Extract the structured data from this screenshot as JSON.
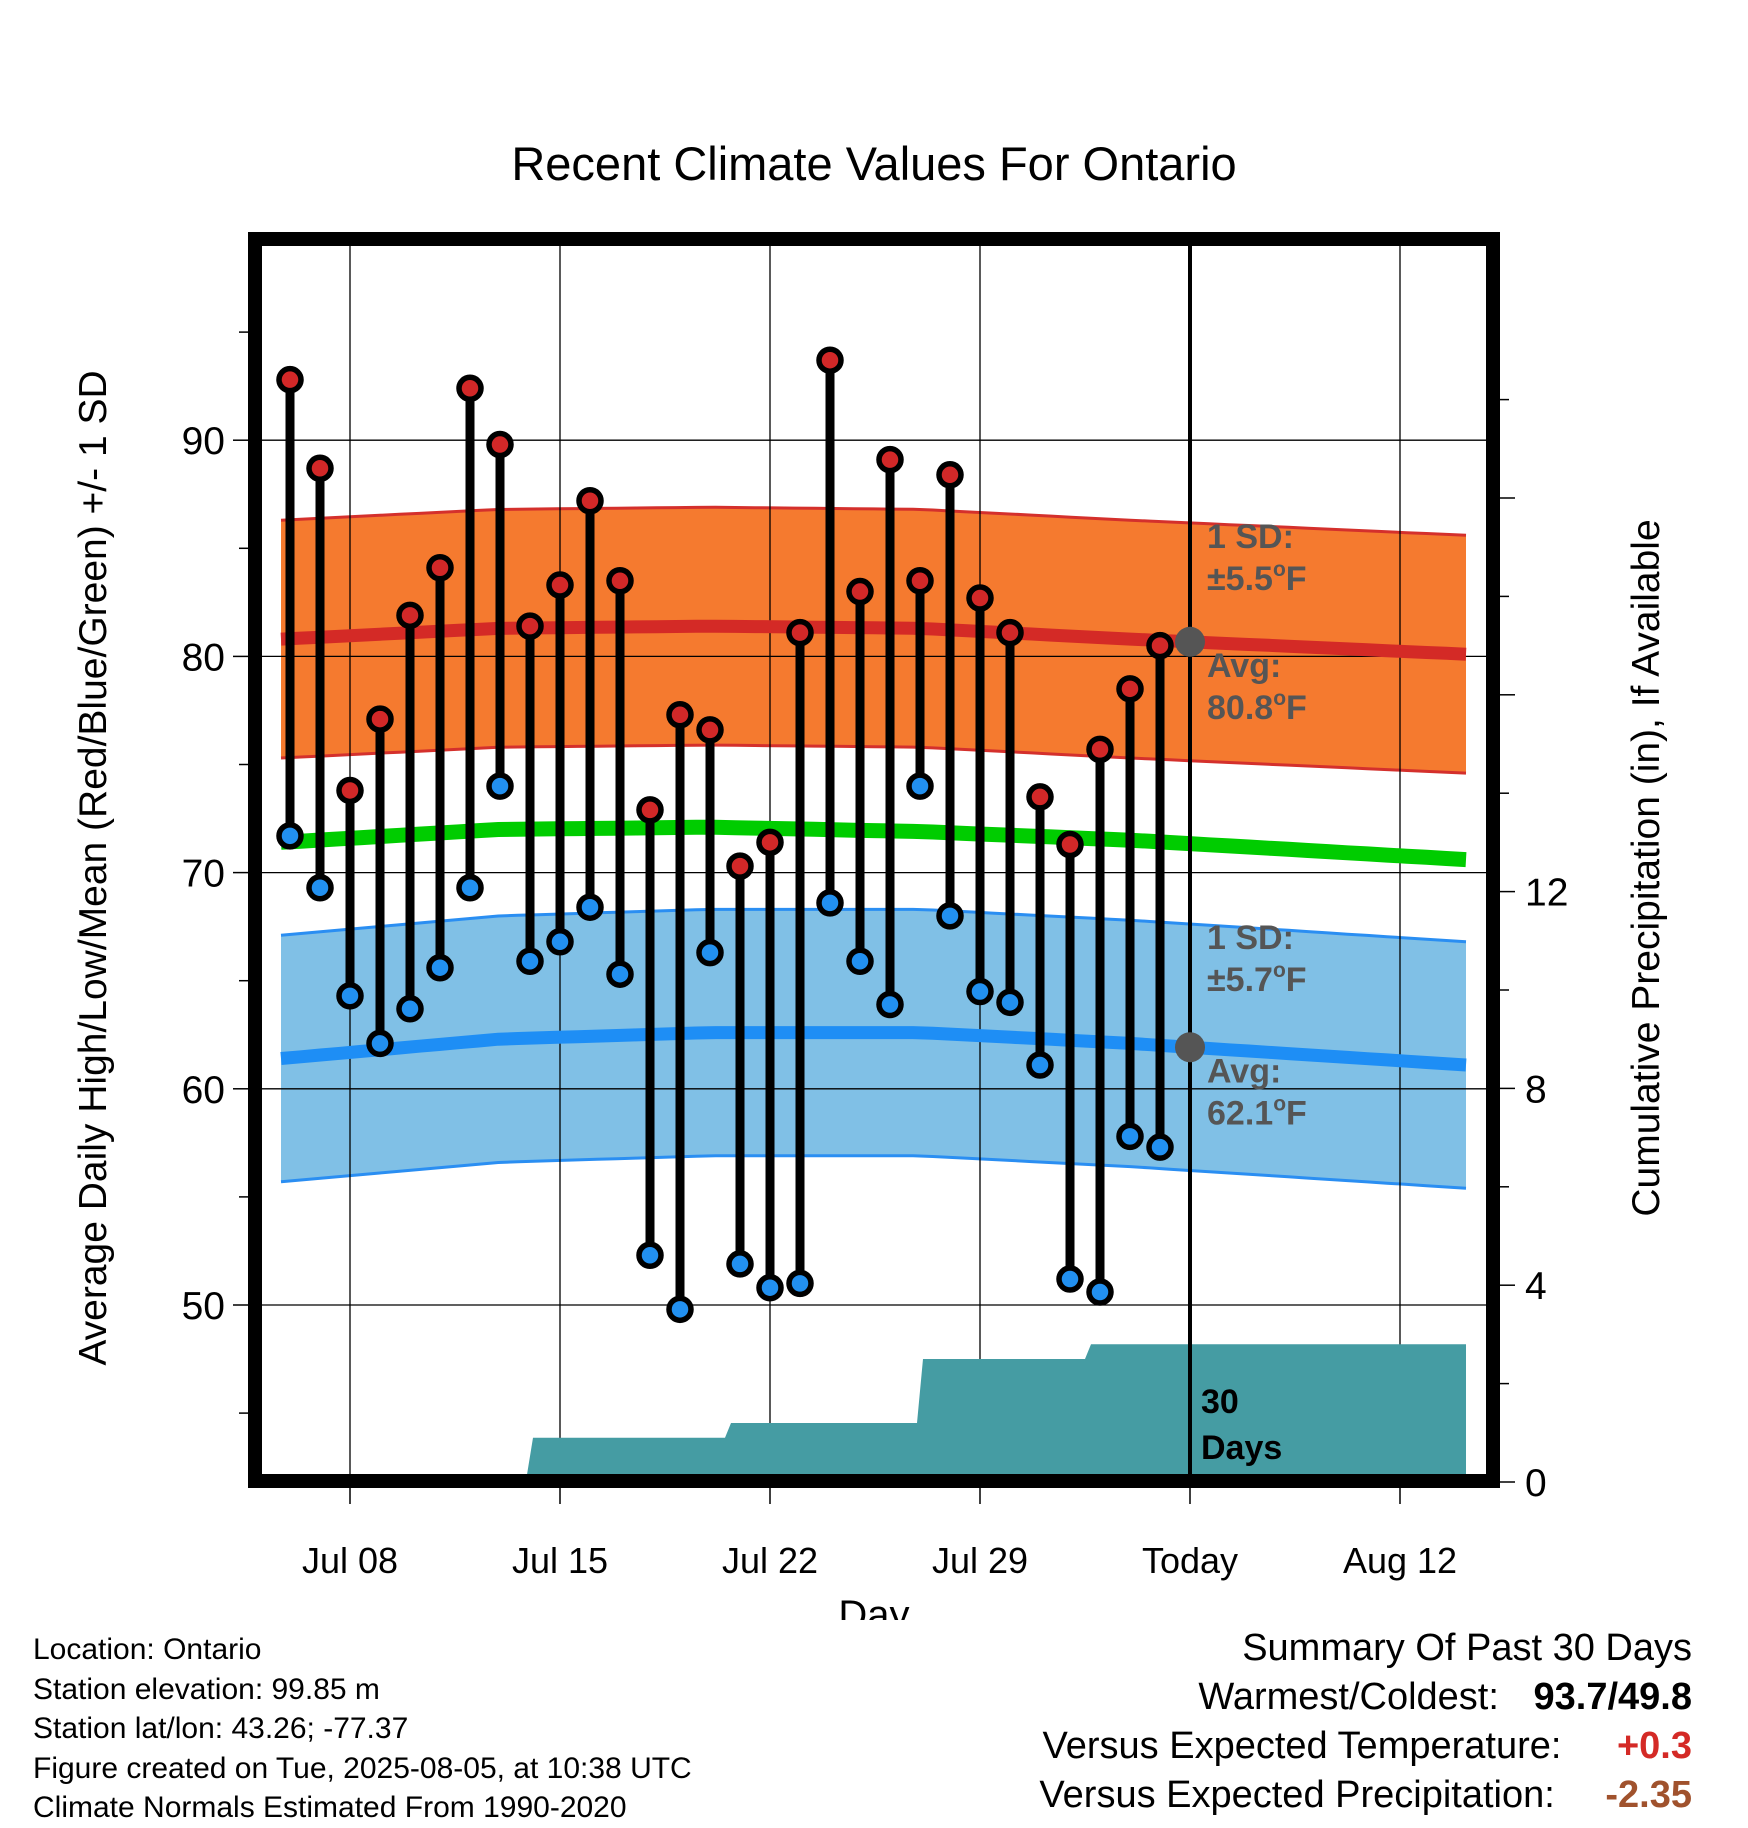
{
  "chart_data": {
    "type": "line",
    "title": "Recent Climate Values For Ontario",
    "xlabel": "Day",
    "ylabel": "Average Daily High/Low/Mean (Red/Blue/Green) +/- 1 SD",
    "y2label": "Cumulative Precipitation (in), If Available",
    "x_tick_labels": [
      "Jul 08",
      "Jul 15",
      "Jul 22",
      "Jul 29",
      "Today",
      "Aug 12"
    ],
    "y_ticks": [
      50,
      60,
      70,
      80,
      90
    ],
    "y2_ticks": [
      0,
      4,
      8,
      12
    ],
    "ylim": [
      42.5,
      98
    ],
    "y2lim": [
      0,
      23.5
    ],
    "xlim_days_from_jul08": [
      -2.3,
      37.2
    ],
    "x_days_from_jul08": [
      -2,
      -1,
      0,
      1,
      2,
      3,
      4,
      5,
      6,
      7,
      8,
      9,
      10,
      11,
      12,
      13,
      14,
      15,
      16,
      17,
      18,
      19,
      20,
      21,
      22,
      23,
      24,
      25,
      26,
      27
    ],
    "daily_high": [
      92.8,
      88.7,
      73.8,
      77.1,
      81.9,
      84.1,
      92.4,
      89.8,
      81.4,
      83.3,
      87.2,
      83.5,
      72.9,
      77.3,
      76.6,
      70.3,
      71.4,
      81.1,
      93.7,
      83.0,
      89.1,
      83.5,
      88.4,
      82.7,
      81.1,
      73.5,
      71.3,
      75.7,
      78.5,
      80.5
    ],
    "daily_low": [
      71.7,
      69.3,
      64.3,
      62.1,
      63.7,
      65.6,
      69.3,
      74.0,
      65.9,
      66.8,
      68.4,
      65.3,
      52.3,
      49.8,
      66.3,
      51.9,
      50.8,
      51.0,
      68.6,
      65.9,
      63.9,
      74.0,
      68.0,
      64.5,
      64.0,
      61.1,
      51.2,
      50.6,
      57.8,
      57.3
    ],
    "normal_high": {
      "x": [
        -2.3,
        5,
        12,
        19,
        26,
        37.2
      ],
      "values": [
        80.8,
        81.3,
        81.4,
        81.3,
        80.8,
        80.1
      ]
    },
    "normal_high_sd": 5.5,
    "normal_mean": {
      "x": [
        -2.3,
        5,
        12,
        19,
        26,
        37.2
      ],
      "values": [
        71.4,
        72.0,
        72.1,
        71.9,
        71.5,
        70.6
      ]
    },
    "normal_low": {
      "x": [
        -2.3,
        5,
        12,
        19,
        26,
        37.2
      ],
      "values": [
        61.4,
        62.3,
        62.6,
        62.6,
        62.1,
        61.1
      ]
    },
    "normal_low_sd": 5.7,
    "cumulative_precip": {
      "x": [
        -2.3,
        3.9,
        3.9,
        5.9,
        6.1,
        12.5,
        12.7,
        18.9,
        19.1,
        24.5,
        24.7,
        37.2
      ],
      "values": [
        0,
        0,
        0.15,
        0.15,
        0.9,
        0.9,
        1.2,
        1.2,
        2.5,
        2.5,
        2.8,
        2.8
      ]
    },
    "grid": true,
    "annotations": {
      "high_sd_label": "1 SD:",
      "high_sd_value": "±5.5",
      "high_avg_label": "Avg:",
      "high_avg_value": "80.8",
      "low_sd_label": "1 SD:",
      "low_sd_value": "±5.7",
      "low_avg_label": "Avg:",
      "low_avg_value": "62.1",
      "degree_symbol": "o",
      "unit": "F",
      "days_count": "30",
      "days_word": "Days"
    },
    "colors": {
      "high_band": "#f57a2f",
      "high_line": "#d42a26",
      "high_edge": "#d4302c",
      "low_band": "#80c0e6",
      "low_line": "#1e8ef5",
      "low_edge": "#2a8ef2",
      "mean_line": "#00cc00",
      "precip": "#459ca3",
      "marker_high": "#d22828",
      "marker_low": "#2290f0",
      "annotation": "#555555"
    }
  },
  "info": {
    "location": "Location: Ontario",
    "elevation": "Station elevation: 99.85 m",
    "latlon": "Station lat/lon: 43.26; -77.37",
    "created": "Figure created on Tue, 2025-08-05, at 10:38 UTC",
    "normals": "Climate Normals Estimated From 1990-2020"
  },
  "summary": {
    "title": "Summary Of Past 30 Days",
    "warmest_label": "Warmest/Coldest:",
    "warmest_value": "93.7",
    "separator": "/",
    "coldest_value": "49.8",
    "temp_label": "Versus Expected Temperature:",
    "temp_value": "+0.3",
    "temp_color": "#d42a26",
    "precip_label": "Versus Expected Precipitation:",
    "precip_value": "-2.35",
    "precip_color": "#a0522d"
  }
}
